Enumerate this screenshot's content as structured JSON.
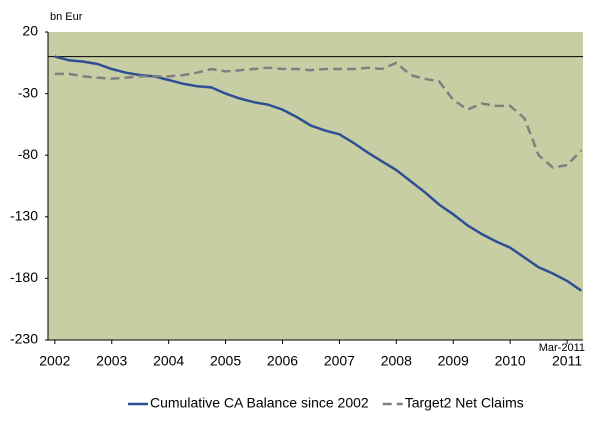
{
  "chart_data": {
    "type": "line",
    "y_unit_label": "bn Eur",
    "annotation": "Mar-2011",
    "x": [
      2002,
      2002.25,
      2002.5,
      2002.75,
      2003,
      2003.25,
      2003.5,
      2003.75,
      2004,
      2004.25,
      2004.5,
      2004.75,
      2005,
      2005.25,
      2005.5,
      2005.75,
      2006,
      2006.25,
      2006.5,
      2006.75,
      2007,
      2007.25,
      2007.5,
      2007.75,
      2008,
      2008.25,
      2008.5,
      2008.75,
      2009,
      2009.25,
      2009.5,
      2009.75,
      2010,
      2010.25,
      2010.5,
      2010.75,
      2011,
      2011.25
    ],
    "series": [
      {
        "name": "Cumulative CA Balance since 2002",
        "color": "#2e4f93",
        "dashed": false,
        "values": [
          0,
          -3,
          -4,
          -6,
          -10,
          -13,
          -15,
          -16,
          -19,
          -22,
          -24,
          -25,
          -30,
          -34,
          -37,
          -39,
          -43,
          -49,
          -56,
          -60,
          -63,
          -70,
          -78,
          -85,
          -92,
          -101,
          -110,
          -120,
          -128,
          -137,
          -144,
          -150,
          -155,
          -163,
          -171,
          -176,
          -182,
          -190
        ]
      },
      {
        "name": "Target2 Net Claims",
        "color": "#808080",
        "dashed": true,
        "values": [
          -14,
          -14,
          -16,
          -17,
          -18,
          -17,
          -16,
          -16,
          -16,
          -15,
          -13,
          -10,
          -12,
          -11,
          -10,
          -9,
          -10,
          -10,
          -11,
          -10,
          -10,
          -10,
          -9,
          -10,
          -5,
          -15,
          -18,
          -20,
          -35,
          -43,
          -38,
          -40,
          -40,
          -50,
          -80,
          -90,
          -88,
          -76
        ]
      }
    ],
    "xlim": [
      2001.88,
      2011.28
    ],
    "xticks": [
      2002,
      2003,
      2004,
      2005,
      2006,
      2007,
      2008,
      2009,
      2010,
      2011
    ],
    "ylim": [
      -230,
      20
    ],
    "yticks": [
      20,
      -30,
      -80,
      -130,
      -180,
      -230
    ],
    "zero_line": true,
    "plot_background": "#c8cea4",
    "legend": "bottom"
  }
}
